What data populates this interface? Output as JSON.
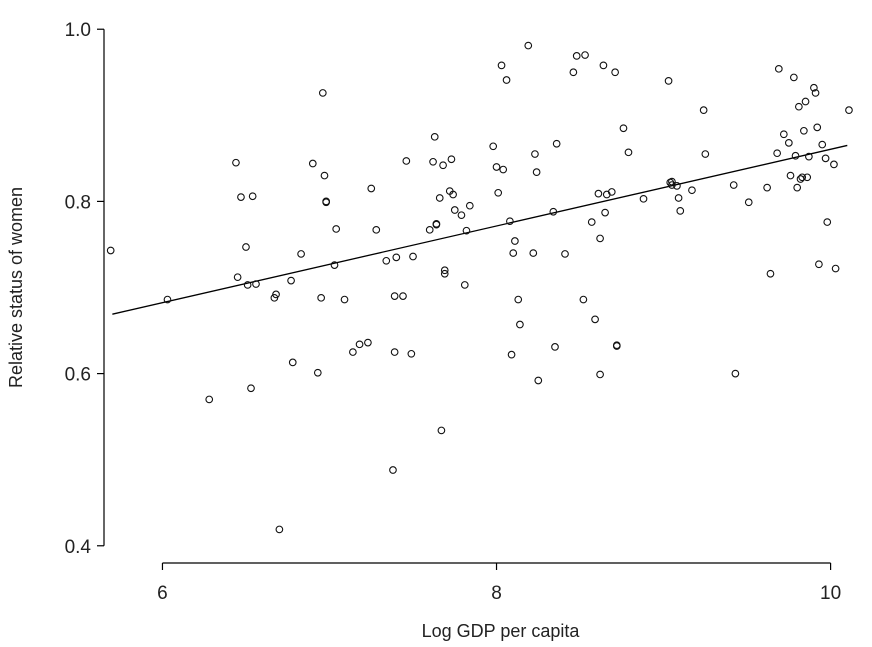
{
  "chart_data": {
    "type": "scatter",
    "title": "",
    "xlabel": "Log GDP per capita",
    "ylabel": "Relative status of women",
    "xlim": [
      5.65,
      10.2
    ],
    "ylim": [
      0.38,
      1.02
    ],
    "xticks": [
      6,
      8,
      10
    ],
    "xtick_labels": [
      "6",
      "8",
      "10"
    ],
    "yticks": [
      0.4,
      0.6,
      0.8,
      1.0
    ],
    "ytick_labels": [
      "0.4",
      "0.6",
      "0.8",
      "1.0"
    ],
    "grid": false,
    "legend": "none",
    "fit_line": {
      "x": [
        5.7,
        10.1
      ],
      "y": [
        0.669,
        0.865
      ]
    },
    "points": [
      [
        5.69,
        0.743
      ],
      [
        6.03,
        0.686
      ],
      [
        6.28,
        0.57
      ],
      [
        6.44,
        0.845
      ],
      [
        6.45,
        0.712
      ],
      [
        6.47,
        0.805
      ],
      [
        6.5,
        0.747
      ],
      [
        6.51,
        0.703
      ],
      [
        6.54,
        0.806
      ],
      [
        6.53,
        0.583
      ],
      [
        6.56,
        0.704
      ],
      [
        6.67,
        0.688
      ],
      [
        6.68,
        0.692
      ],
      [
        6.7,
        0.419
      ],
      [
        6.77,
        0.708
      ],
      [
        6.78,
        0.613
      ],
      [
        6.83,
        0.739
      ],
      [
        6.9,
        0.844
      ],
      [
        6.93,
        0.601
      ],
      [
        6.95,
        0.688
      ],
      [
        6.96,
        0.926
      ],
      [
        6.97,
        0.83
      ],
      [
        6.98,
        0.8
      ],
      [
        6.98,
        0.799
      ],
      [
        7.03,
        0.726
      ],
      [
        7.04,
        0.768
      ],
      [
        7.09,
        0.686
      ],
      [
        7.14,
        0.625
      ],
      [
        7.18,
        0.634
      ],
      [
        7.23,
        0.636
      ],
      [
        7.25,
        0.815
      ],
      [
        7.28,
        0.767
      ],
      [
        7.34,
        0.731
      ],
      [
        7.38,
        0.488
      ],
      [
        7.39,
        0.69
      ],
      [
        7.4,
        0.735
      ],
      [
        7.39,
        0.625
      ],
      [
        7.44,
        0.69
      ],
      [
        7.46,
        0.847
      ],
      [
        7.49,
        0.623
      ],
      [
        7.5,
        0.736
      ],
      [
        7.6,
        0.767
      ],
      [
        7.62,
        0.846
      ],
      [
        7.63,
        0.875
      ],
      [
        7.64,
        0.774
      ],
      [
        7.64,
        0.773
      ],
      [
        7.66,
        0.804
      ],
      [
        7.67,
        0.534
      ],
      [
        7.68,
        0.842
      ],
      [
        7.69,
        0.72
      ],
      [
        7.69,
        0.716
      ],
      [
        7.72,
        0.812
      ],
      [
        7.73,
        0.849
      ],
      [
        7.74,
        0.808
      ],
      [
        7.75,
        0.79
      ],
      [
        7.79,
        0.784
      ],
      [
        7.81,
        0.703
      ],
      [
        7.82,
        0.766
      ],
      [
        7.84,
        0.795
      ],
      [
        7.98,
        0.864
      ],
      [
        8.0,
        0.84
      ],
      [
        8.01,
        0.81
      ],
      [
        8.03,
        0.958
      ],
      [
        8.04,
        0.837
      ],
      [
        8.06,
        0.941
      ],
      [
        8.08,
        0.777
      ],
      [
        8.09,
        0.622
      ],
      [
        8.1,
        0.74
      ],
      [
        8.11,
        0.754
      ],
      [
        8.13,
        0.686
      ],
      [
        8.14,
        0.657
      ],
      [
        8.19,
        0.981
      ],
      [
        8.22,
        0.74
      ],
      [
        8.23,
        0.855
      ],
      [
        8.24,
        0.834
      ],
      [
        8.25,
        0.592
      ],
      [
        8.34,
        0.788
      ],
      [
        8.35,
        0.631
      ],
      [
        8.36,
        0.867
      ],
      [
        8.41,
        0.739
      ],
      [
        8.46,
        0.95
      ],
      [
        8.48,
        0.969
      ],
      [
        8.52,
        0.686
      ],
      [
        8.53,
        0.97
      ],
      [
        8.57,
        0.776
      ],
      [
        8.59,
        0.663
      ],
      [
        8.61,
        0.809
      ],
      [
        8.62,
        0.757
      ],
      [
        8.62,
        0.599
      ],
      [
        8.64,
        0.958
      ],
      [
        8.65,
        0.787
      ],
      [
        8.66,
        0.808
      ],
      [
        8.69,
        0.811
      ],
      [
        8.71,
        0.95
      ],
      [
        8.72,
        0.632
      ],
      [
        8.72,
        0.633
      ],
      [
        8.76,
        0.885
      ],
      [
        8.79,
        0.857
      ],
      [
        8.88,
        0.803
      ],
      [
        9.03,
        0.94
      ],
      [
        9.04,
        0.822
      ],
      [
        9.05,
        0.819
      ],
      [
        9.05,
        0.823
      ],
      [
        9.08,
        0.818
      ],
      [
        9.09,
        0.804
      ],
      [
        9.1,
        0.789
      ],
      [
        9.17,
        0.813
      ],
      [
        9.24,
        0.906
      ],
      [
        9.25,
        0.855
      ],
      [
        9.42,
        0.819
      ],
      [
        9.43,
        0.6
      ],
      [
        9.51,
        0.799
      ],
      [
        9.62,
        0.816
      ],
      [
        9.64,
        0.716
      ],
      [
        9.68,
        0.856
      ],
      [
        9.69,
        0.954
      ],
      [
        9.72,
        0.878
      ],
      [
        9.75,
        0.868
      ],
      [
        9.76,
        0.83
      ],
      [
        9.78,
        0.944
      ],
      [
        9.79,
        0.853
      ],
      [
        9.8,
        0.816
      ],
      [
        9.81,
        0.91
      ],
      [
        9.82,
        0.826
      ],
      [
        9.83,
        0.828
      ],
      [
        9.84,
        0.882
      ],
      [
        9.85,
        0.916
      ],
      [
        9.86,
        0.828
      ],
      [
        9.87,
        0.852
      ],
      [
        9.9,
        0.932
      ],
      [
        9.91,
        0.926
      ],
      [
        9.92,
        0.886
      ],
      [
        9.93,
        0.727
      ],
      [
        9.95,
        0.866
      ],
      [
        9.97,
        0.85
      ],
      [
        9.98,
        0.776
      ],
      [
        10.02,
        0.843
      ],
      [
        10.03,
        0.722
      ],
      [
        10.11,
        0.906
      ]
    ]
  }
}
